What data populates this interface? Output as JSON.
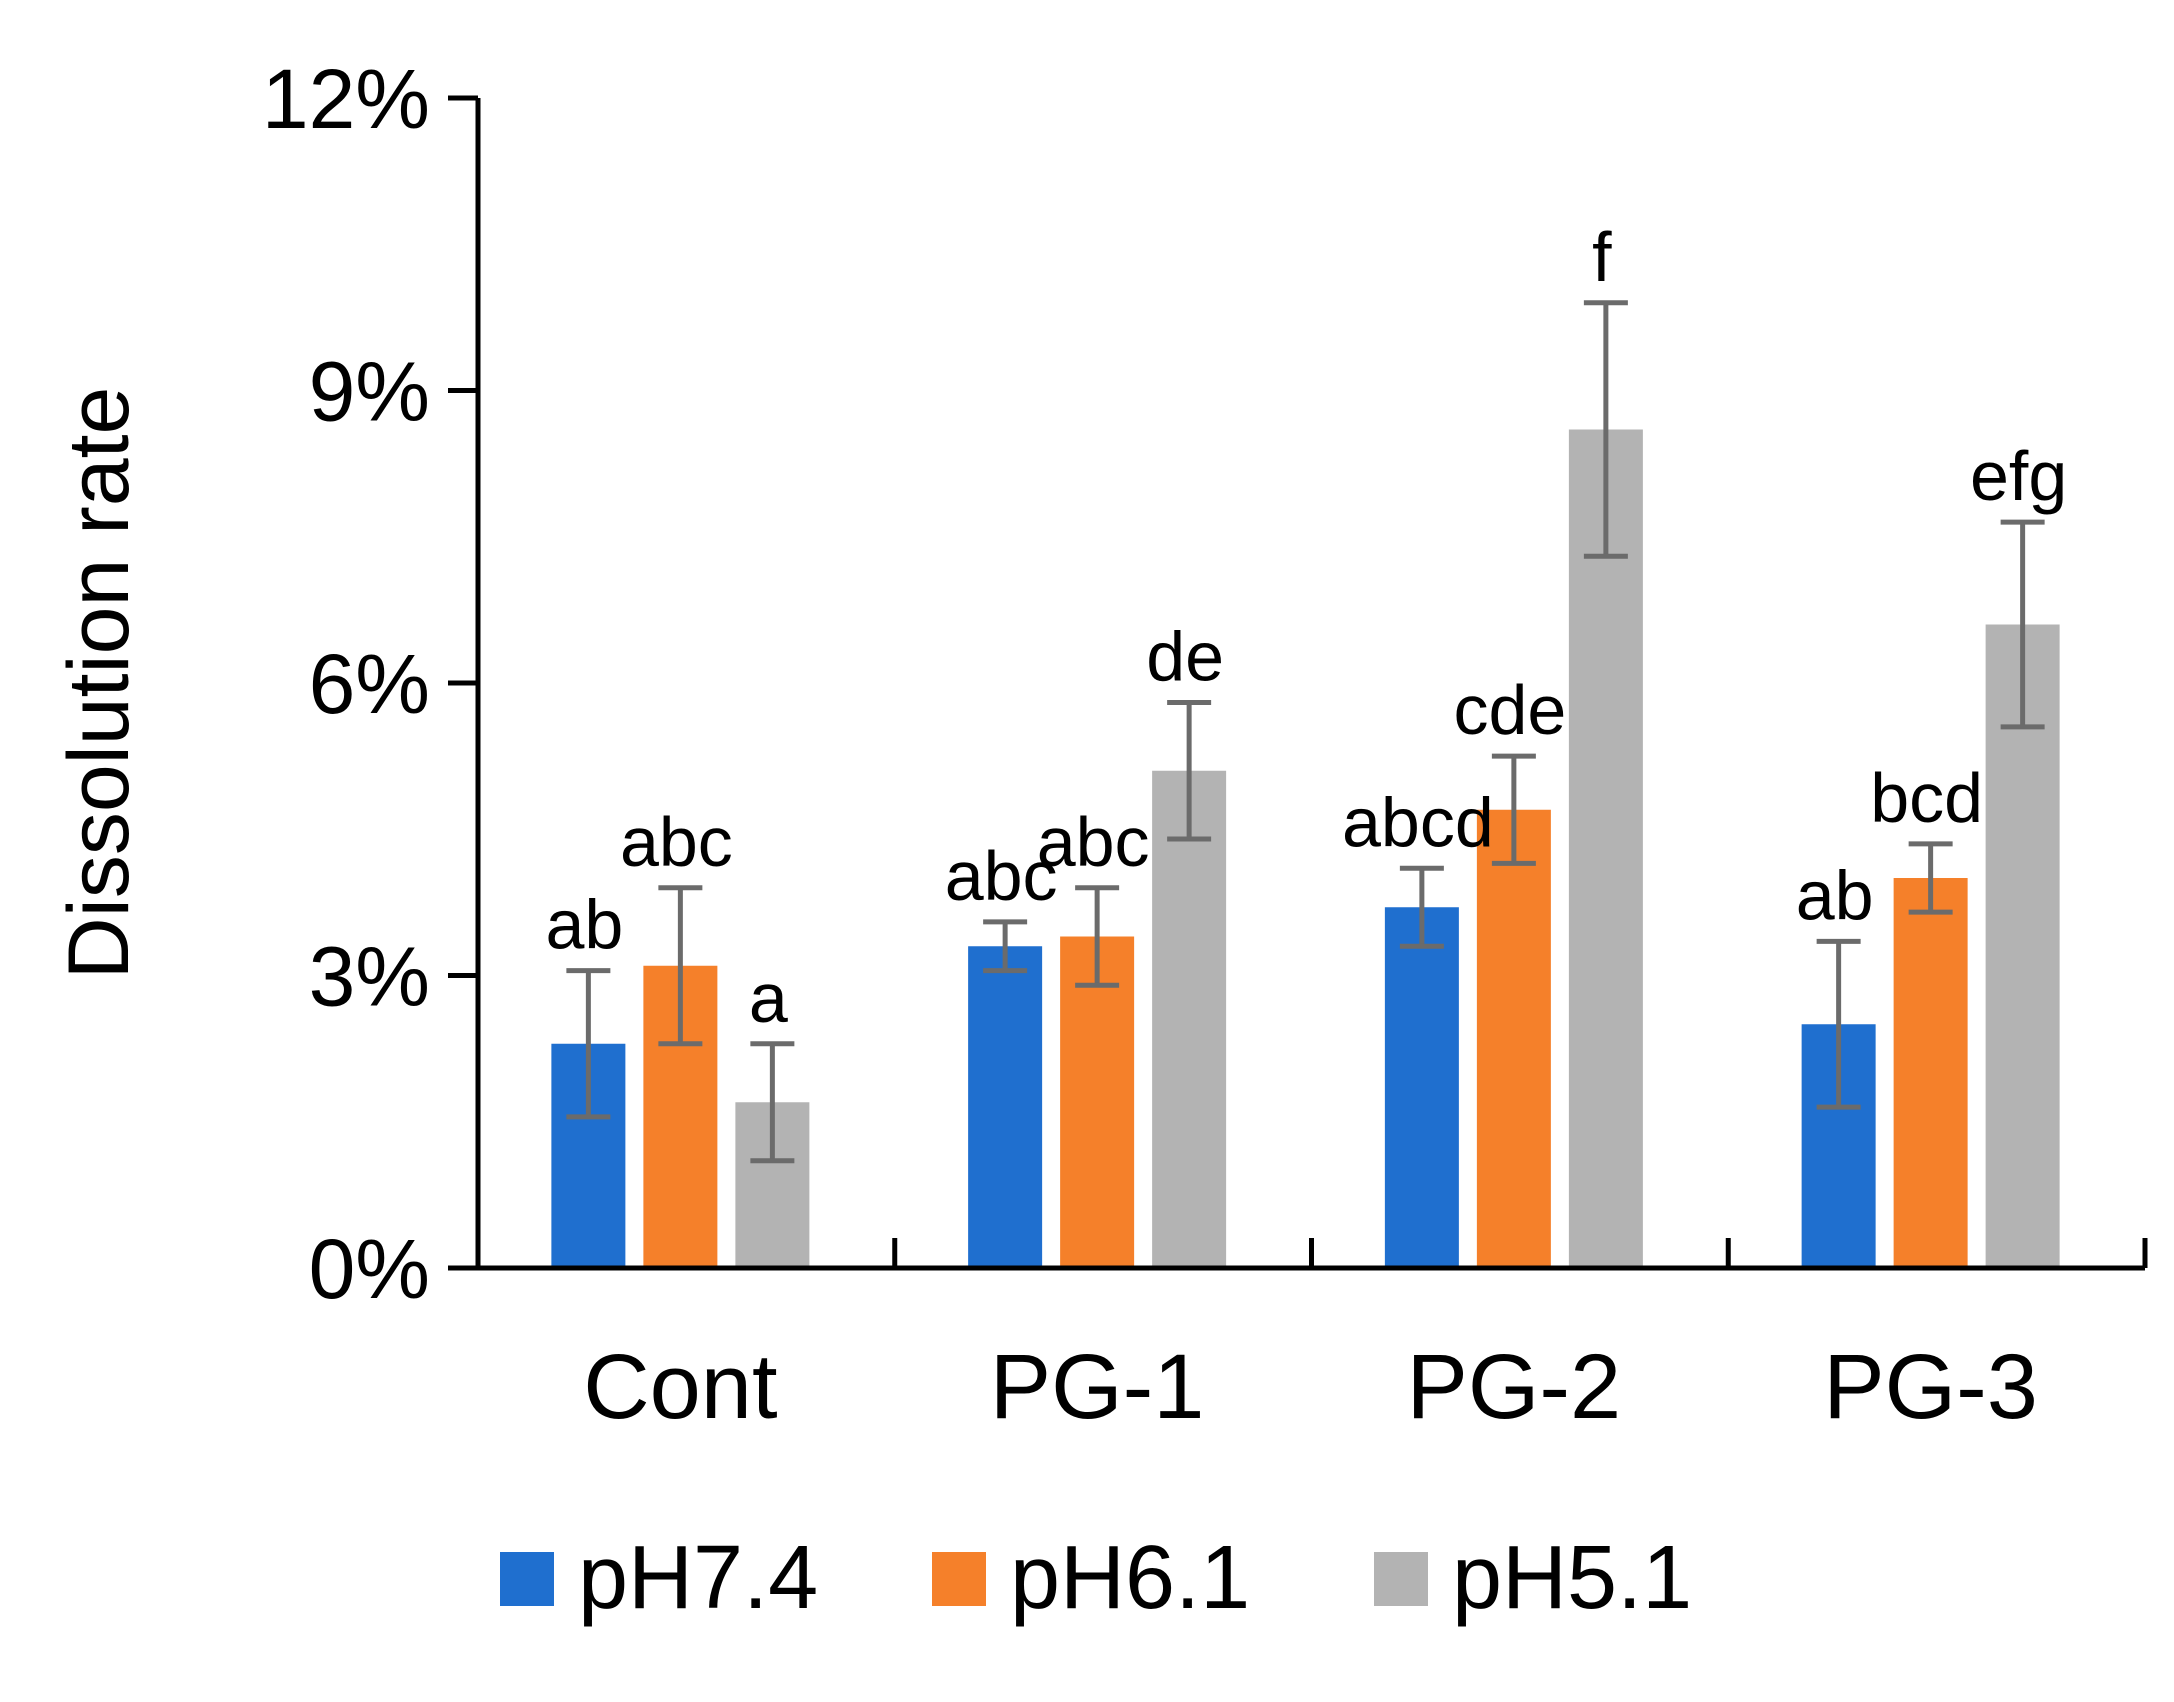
{
  "chart_data": {
    "type": "bar",
    "title": "",
    "xlabel": "",
    "ylabel": "Dissolution rate",
    "ylim": [
      0,
      12
    ],
    "yticks": [
      0,
      3,
      6,
      9,
      12
    ],
    "ytick_labels": [
      "0%",
      "3%",
      "6%",
      "9%",
      "12%"
    ],
    "categories": [
      "Cont",
      "PG-1",
      "PG-2",
      "PG-3"
    ],
    "legend_position": "bottom",
    "series": [
      {
        "name": "pH7.4",
        "color": "#1f6fcf",
        "values": [
          2.3,
          3.3,
          3.7,
          2.5
        ],
        "errors": [
          0.75,
          0.25,
          0.4,
          0.85
        ],
        "labels": [
          "ab",
          "abc",
          "abcd",
          "ab"
        ]
      },
      {
        "name": "pH6.1",
        "color": "#f5802a",
        "values": [
          3.1,
          3.4,
          4.7,
          4.0
        ],
        "errors": [
          0.8,
          0.5,
          0.55,
          0.35
        ],
        "labels": [
          "abc",
          "abc",
          "cde",
          "bcd"
        ]
      },
      {
        "name": "pH5.1",
        "color": "#b3b3b3",
        "values": [
          1.7,
          5.1,
          8.6,
          6.6
        ],
        "errors": [
          0.6,
          0.7,
          1.3,
          1.05
        ],
        "labels": [
          "a",
          "de",
          "f",
          "efg"
        ]
      }
    ],
    "error_bar_color": "#6b6b6b"
  }
}
